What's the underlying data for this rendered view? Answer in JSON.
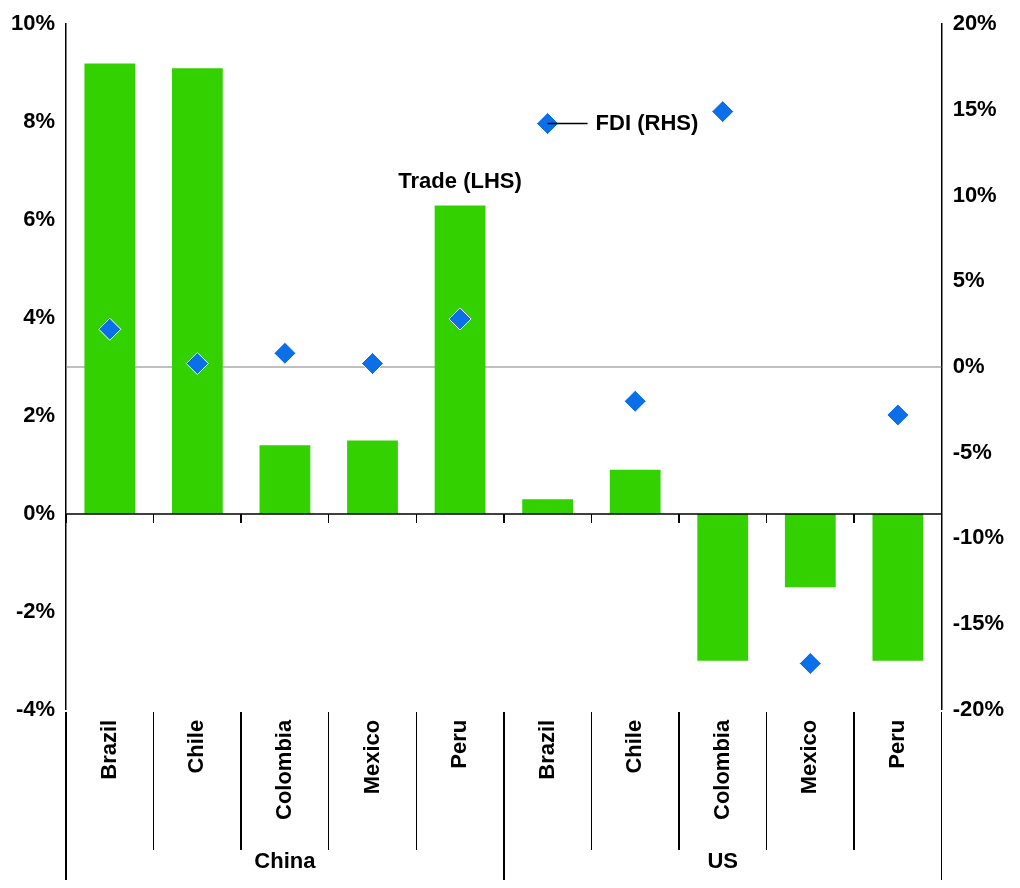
{
  "chart_data": {
    "type": "bar",
    "categories": [
      "Brazil",
      "Chile",
      "Colombia",
      "Mexico",
      "Peru",
      "Brazil",
      "Chile",
      "Colombia",
      "Mexico",
      "Peru"
    ],
    "series": [
      {
        "name": "Trade (LHS)",
        "color": "#33d100",
        "values": [
          9.2,
          9.1,
          1.4,
          1.5,
          6.3,
          0.3,
          0.9,
          -3.0,
          -1.5,
          -3.0
        ]
      },
      {
        "name": "FDI (RHS)",
        "type": "scatter",
        "axis": "y2",
        "marker": "diamond",
        "color": "#0a6fe8",
        "values": [
          2.2,
          0.2,
          0.8,
          0.2,
          2.8,
          14.2,
          -2.0,
          14.9,
          -17.3,
          -2.8
        ]
      }
    ],
    "ylim": [
      -4,
      10
    ],
    "yticks": [
      {
        "value": -4,
        "label": "-4%"
      },
      {
        "value": -2,
        "label": "-2%"
      },
      {
        "value": 0,
        "label": "0%"
      },
      {
        "value": 2,
        "label": "2%"
      },
      {
        "value": 4,
        "label": "4%"
      },
      {
        "value": 6,
        "label": "6%"
      },
      {
        "value": 8,
        "label": "8%"
      },
      {
        "value": 10,
        "label": "10%"
      }
    ],
    "y2lim": [
      -20,
      20
    ],
    "y2ticks": [
      {
        "value": -20,
        "label": "-20%"
      },
      {
        "value": -15,
        "label": "-15%"
      },
      {
        "value": -10,
        "label": "-10%"
      },
      {
        "value": -5,
        "label": "-5%"
      },
      {
        "value": 0,
        "label": "0%"
      },
      {
        "value": 5,
        "label": "5%"
      },
      {
        "value": 10,
        "label": "10%"
      },
      {
        "value": 15,
        "label": "15%"
      },
      {
        "value": 20,
        "label": "20%"
      }
    ],
    "ref_lines": [
      {
        "axis": "y2",
        "value": 0,
        "color": "#808080"
      }
    ],
    "annotations": [
      "China",
      "US"
    ],
    "grid": false,
    "legend": false
  }
}
